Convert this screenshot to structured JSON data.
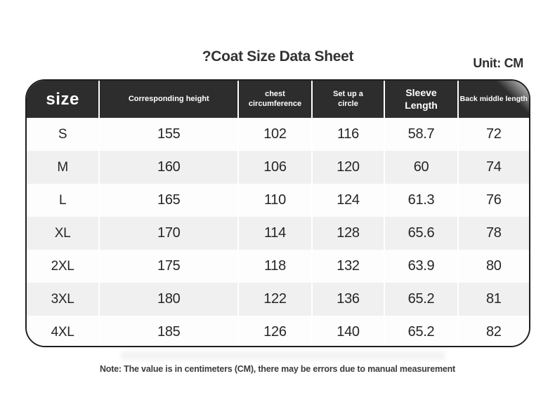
{
  "page": {
    "title": "?Coat Size Data Sheet",
    "unit_label": "Unit: CM",
    "note": "Note: The value is in centimeters (CM), there may be errors due to manual measurement"
  },
  "table": {
    "columns": [
      {
        "label": "size"
      },
      {
        "label": "Corresponding height"
      },
      {
        "label": "chest\ncircumference"
      },
      {
        "label": "Set up a\ncircle"
      },
      {
        "label": "Sleeve\nLength"
      },
      {
        "label": "Back middle length"
      }
    ],
    "rows": [
      [
        "S",
        "155",
        "102",
        "116",
        "58.7",
        "72"
      ],
      [
        "M",
        "160",
        "106",
        "120",
        "60",
        "74"
      ],
      [
        "L",
        "165",
        "110",
        "124",
        "61.3",
        "76"
      ],
      [
        "XL",
        "170",
        "114",
        "128",
        "65.6",
        "78"
      ],
      [
        "2XL",
        "175",
        "118",
        "132",
        "63.9",
        "80"
      ],
      [
        "3XL",
        "180",
        "122",
        "136",
        "65.2",
        "81"
      ],
      [
        "4XL",
        "185",
        "126",
        "140",
        "65.2",
        "82"
      ]
    ]
  },
  "colors": {
    "header_bg": "#2d2d2d",
    "header_text": "#ffffff",
    "row_odd": "#fdfdfd",
    "row_even": "#f0f0f0",
    "border": "#1e1e1e",
    "body_text": "#262626",
    "title_text": "#333333"
  }
}
